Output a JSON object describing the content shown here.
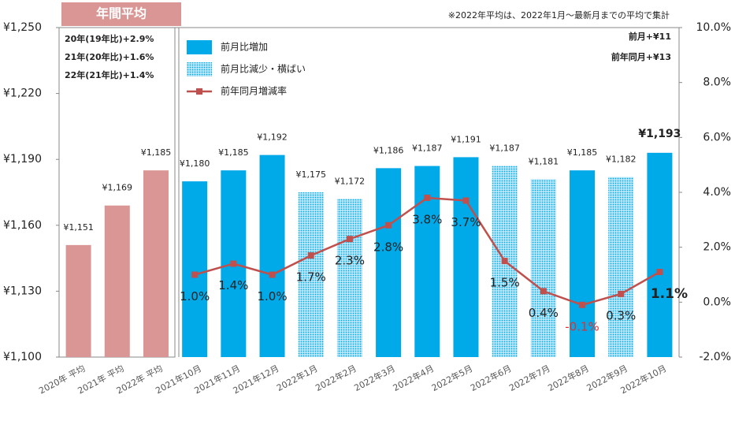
{
  "chart_data": {
    "type": "bar",
    "categories": [
      "2020年 平均",
      "2021年 平均",
      "2022年 平均",
      "2021年10月",
      "2021年11月",
      "2021年12月",
      "2022年1月",
      "2022年2月",
      "2022年3月",
      "2022年4月",
      "2022年5月",
      "2022年6月",
      "2022年7月",
      "2022年8月",
      "2022年9月",
      "2022年10月"
    ],
    "series": [
      {
        "name": "年間平均",
        "color": "#d99694",
        "legend": false,
        "values": [
          1151,
          1169,
          1185,
          null,
          null,
          null,
          null,
          null,
          null,
          null,
          null,
          null,
          null,
          null,
          null,
          null
        ],
        "value_labels": [
          "¥1,151",
          "¥1,169",
          "¥1,185",
          null,
          null,
          null,
          null,
          null,
          null,
          null,
          null,
          null,
          null,
          null,
          null,
          null
        ]
      },
      {
        "name": "前月比増加",
        "color": "#00a9e8",
        "values": [
          null,
          null,
          null,
          1180,
          1185,
          1192,
          null,
          null,
          1186,
          1187,
          1191,
          null,
          null,
          1185,
          null,
          1193
        ],
        "value_labels": [
          null,
          null,
          null,
          "¥1,180",
          "¥1,185",
          "¥1,192",
          null,
          null,
          "¥1,186",
          "¥1,187",
          "¥1,191",
          null,
          null,
          "¥1,185",
          null,
          "¥1,193"
        ]
      },
      {
        "name": "前月比減少・横ばい",
        "color": "#00a9e8",
        "pattern": "dots",
        "values": [
          null,
          null,
          null,
          null,
          null,
          null,
          1175,
          1172,
          null,
          null,
          null,
          1187,
          1181,
          null,
          1182,
          null
        ],
        "value_labels": [
          null,
          null,
          null,
          null,
          null,
          null,
          "¥1,175",
          "¥1,172",
          null,
          null,
          null,
          "¥1,187",
          "¥1,181",
          null,
          "¥1,182",
          null
        ]
      },
      {
        "name": "前年同月増減率",
        "color": "#c0504d",
        "type": "line",
        "axis": "y2",
        "values": [
          null,
          null,
          null,
          1.0,
          1.4,
          1.0,
          1.7,
          2.3,
          2.8,
          3.8,
          3.7,
          1.5,
          0.4,
          -0.1,
          0.3,
          1.1
        ],
        "value_labels": [
          null,
          null,
          null,
          "1.0%",
          "1.4%",
          "1.0%",
          "1.7%",
          "2.3%",
          "2.8%",
          "3.8%",
          "3.7%",
          "1.5%",
          "0.4%",
          "-0.1%",
          "0.3%",
          "1.1%"
        ]
      }
    ],
    "ylim": [
      1100,
      1250
    ],
    "yticks": [
      {
        "value": 1100,
        "label": "¥1,100"
      },
      {
        "value": 1130,
        "label": "¥1,130"
      },
      {
        "value": 1160,
        "label": "¥1,160"
      },
      {
        "value": 1190,
        "label": "¥1,190"
      },
      {
        "value": 1220,
        "label": "¥1,220"
      },
      {
        "value": 1250,
        "label": "¥1,250"
      }
    ],
    "y2lim": [
      -2,
      10
    ],
    "y2ticks": [
      {
        "value": -2,
        "label": "-2.0%"
      },
      {
        "value": 0,
        "label": "0.0%"
      },
      {
        "value": 2,
        "label": "2.0%"
      },
      {
        "value": 4,
        "label": "4.0%"
      },
      {
        "value": 6,
        "label": "6.0%"
      },
      {
        "value": 8,
        "label": "8.0%"
      },
      {
        "value": 10,
        "label": "10.0%"
      }
    ],
    "annotations": [
      "※2022年平均は、2022年1月～最新月までの平均で集計",
      "前月+¥11",
      "前年同月+¥13"
    ],
    "notes": [
      "20年(19年比)+2.9%",
      "21年(20年比)+1.6%",
      "22年(21年比)+1.4%"
    ]
  }
}
